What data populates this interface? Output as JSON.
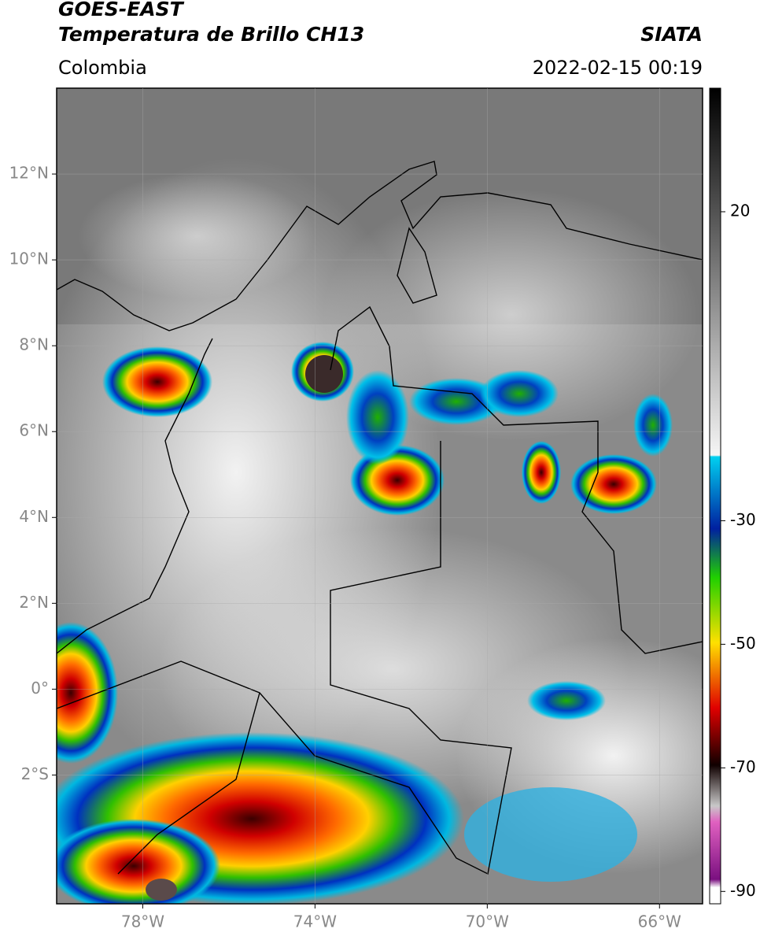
{
  "header": {
    "title": "GOES-EAST",
    "subtitle": "Temperatura de Brillo CH13",
    "source": "SIATA",
    "region": "Colombia",
    "datetime": "2022-02-15 00:19"
  },
  "map": {
    "xlim": [
      -80,
      -65
    ],
    "ylim": [
      -5,
      14
    ],
    "xticks": [
      {
        "value": -78,
        "label": "78°W"
      },
      {
        "value": -74,
        "label": "74°W"
      },
      {
        "value": -70,
        "label": "70°W"
      },
      {
        "value": -66,
        "label": "66°W"
      }
    ],
    "yticks": [
      {
        "value": 12,
        "label": "12°N"
      },
      {
        "value": 10,
        "label": "10°N"
      },
      {
        "value": 8,
        "label": "8°N"
      },
      {
        "value": 6,
        "label": "6°N"
      },
      {
        "value": 4,
        "label": "4°N"
      },
      {
        "value": 2,
        "label": "2°N"
      },
      {
        "value": 0,
        "label": "0°"
      },
      {
        "value": -2,
        "label": "2°S"
      }
    ],
    "grid": true
  },
  "colorbar": {
    "lim": [
      -92,
      40
    ],
    "ticks": [
      20,
      -30,
      -50,
      -70,
      -90
    ]
  }
}
